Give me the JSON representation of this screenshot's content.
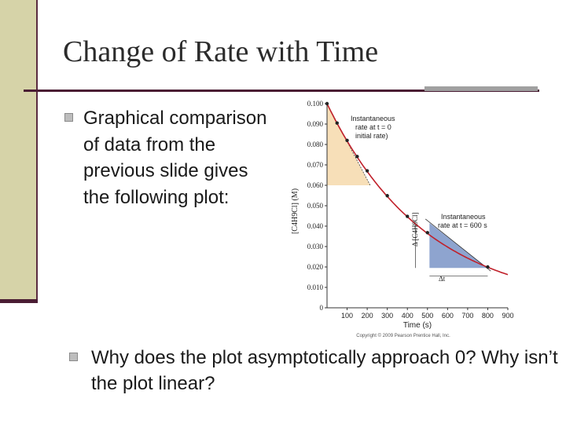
{
  "slide": {
    "title": "Change of Rate with Time",
    "bullet1": "Graphical comparison of data from the previous slide gives the following plot:",
    "bullet2": "Why does the plot asymptotically approach 0? Why isn’t the plot linear?"
  },
  "chart_data": {
    "type": "scatter",
    "title": "",
    "xlabel": "Time (s)",
    "ylabel": "[C4H9Cl] (M)",
    "xlim": [
      0,
      900
    ],
    "ylim": [
      0,
      0.1
    ],
    "x_ticks": [
      "100",
      "200",
      "300",
      "400",
      "500",
      "600",
      "700",
      "800",
      "900"
    ],
    "y_ticks": [
      "0",
      "0.010",
      "0.020",
      "0.030",
      "0.040",
      "0.050",
      "0.060",
      "0.070",
      "0.080",
      "0.090",
      "0.100"
    ],
    "series": [
      {
        "x": [
          0,
          50,
          100,
          150,
          200,
          300,
          400,
          500,
          800
        ],
        "values": [
          0.1,
          0.0905,
          0.082,
          0.0741,
          0.0671,
          0.0549,
          0.0448,
          0.0368,
          0.02
        ]
      }
    ],
    "annotations": {
      "initial": "Instantaneous rate at t = 0 (initial rate)",
      "t600": "Instantaneous rate at t = 600 s",
      "delta_conc": "Δ [C4H9Cl]",
      "delta_t": "Δt"
    },
    "copyright": "Copyright © 2009 Pearson Prentice Hall, Inc."
  },
  "colors": {
    "sidebar": "#d6d3a8",
    "accent_dark": "#4a1d33",
    "curve": "#c0202a",
    "tangent_t0_fill": "#f7dfb8",
    "tangent_t600_fill": "#8ea4cf"
  }
}
